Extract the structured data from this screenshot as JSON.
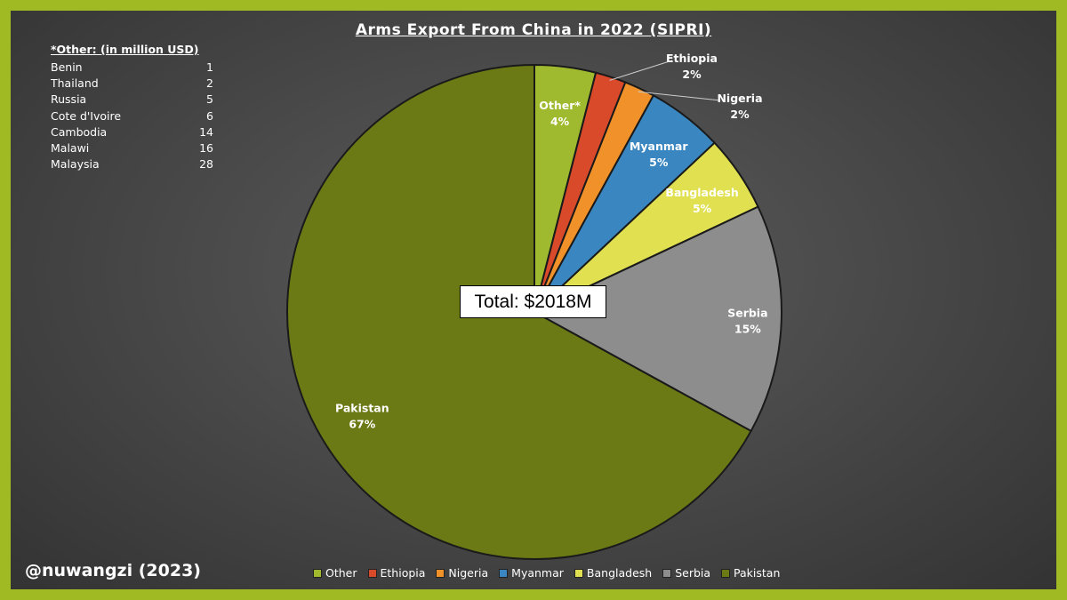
{
  "chart_data": {
    "type": "pie",
    "title": "Arms Export From China in 2022 (SIPRI)",
    "total_label": "Total: $2018M",
    "slices": [
      {
        "name": "Other",
        "label": "Other*",
        "percent": 4,
        "value_text": "4%",
        "color": "#9fba2e"
      },
      {
        "name": "Ethiopia",
        "label": "Ethiopia",
        "percent": 2,
        "value_text": "2%",
        "color": "#d94a2b"
      },
      {
        "name": "Nigeria",
        "label": "Nigeria",
        "percent": 2,
        "value_text": "2%",
        "color": "#f0912a"
      },
      {
        "name": "Myanmar",
        "label": "Myanmar",
        "percent": 5,
        "value_text": "5%",
        "color": "#3a86c0"
      },
      {
        "name": "Bangladesh",
        "label": "Bangladesh",
        "percent": 5,
        "value_text": "5%",
        "color": "#e0e050"
      },
      {
        "name": "Serbia",
        "label": "Serbia",
        "percent": 15,
        "value_text": "15%",
        "color": "#8d8d8d"
      },
      {
        "name": "Pakistan",
        "label": "Pakistan",
        "percent": 67,
        "value_text": "67%",
        "color": "#6b7a14"
      }
    ],
    "legend": [
      "Other",
      "Ethiopia",
      "Nigeria",
      "Myanmar",
      "Bangladesh",
      "Serbia",
      "Pakistan"
    ],
    "legend_position": "bottom"
  },
  "other_breakdown": {
    "header": "*Other: (in million USD)",
    "rows": [
      {
        "country": "Benin",
        "value": "1"
      },
      {
        "country": "Thailand",
        "value": "2"
      },
      {
        "country": "Russia",
        "value": "5"
      },
      {
        "country": "Cote d'Ivoire",
        "value": "6"
      },
      {
        "country": "Cambodia",
        "value": "14"
      },
      {
        "country": "Malawi",
        "value": "16"
      },
      {
        "country": "Malaysia",
        "value": "28"
      }
    ]
  },
  "credit": "@nuwangzi (2023)"
}
